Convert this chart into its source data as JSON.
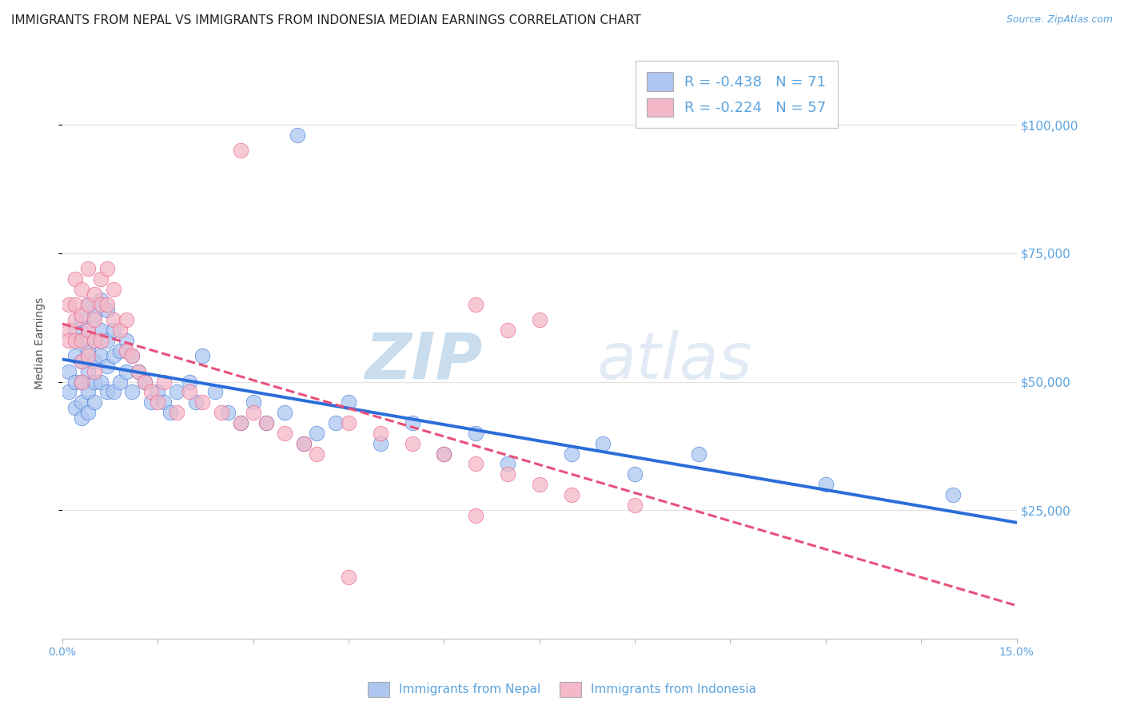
{
  "title": "IMMIGRANTS FROM NEPAL VS IMMIGRANTS FROM INDONESIA MEDIAN EARNINGS CORRELATION CHART",
  "source": "Source: ZipAtlas.com",
  "ylabel": "Median Earnings",
  "yticks": [
    25000,
    50000,
    75000,
    100000
  ],
  "ytick_labels": [
    "$25,000",
    "$50,000",
    "$75,000",
    "$100,000"
  ],
  "xlim": [
    0.0,
    0.15
  ],
  "ylim": [
    0,
    115000
  ],
  "nepal_color": "#aec6f0",
  "indonesia_color": "#f4b8c8",
  "nepal_R": -0.438,
  "nepal_N": 71,
  "indonesia_R": -0.224,
  "indonesia_N": 57,
  "watermark_zip": "ZIP",
  "watermark_atlas": "atlas",
  "legend_label_nepal": "Immigrants from Nepal",
  "legend_label_indonesia": "Immigrants from Indonesia",
  "nepal_x": [
    0.001,
    0.001,
    0.002,
    0.002,
    0.002,
    0.002,
    0.003,
    0.003,
    0.003,
    0.003,
    0.003,
    0.003,
    0.004,
    0.004,
    0.004,
    0.004,
    0.004,
    0.004,
    0.005,
    0.005,
    0.005,
    0.005,
    0.005,
    0.006,
    0.006,
    0.006,
    0.006,
    0.007,
    0.007,
    0.007,
    0.007,
    0.008,
    0.008,
    0.008,
    0.009,
    0.009,
    0.01,
    0.01,
    0.011,
    0.011,
    0.012,
    0.013,
    0.014,
    0.015,
    0.016,
    0.017,
    0.018,
    0.02,
    0.021,
    0.022,
    0.024,
    0.026,
    0.028,
    0.03,
    0.032,
    0.035,
    0.038,
    0.04,
    0.043,
    0.045,
    0.05,
    0.055,
    0.06,
    0.065,
    0.07,
    0.08,
    0.085,
    0.09,
    0.1,
    0.12,
    0.14
  ],
  "nepal_y": [
    52000,
    48000,
    60000,
    55000,
    50000,
    45000,
    62000,
    58000,
    54000,
    50000,
    46000,
    43000,
    65000,
    60000,
    56000,
    52000,
    48000,
    44000,
    63000,
    58000,
    54000,
    50000,
    46000,
    66000,
    60000,
    55000,
    50000,
    64000,
    58000,
    53000,
    48000,
    60000,
    55000,
    48000,
    56000,
    50000,
    58000,
    52000,
    55000,
    48000,
    52000,
    50000,
    46000,
    48000,
    46000,
    44000,
    48000,
    50000,
    46000,
    55000,
    48000,
    44000,
    42000,
    46000,
    42000,
    44000,
    38000,
    40000,
    42000,
    46000,
    38000,
    42000,
    36000,
    40000,
    34000,
    36000,
    38000,
    32000,
    36000,
    30000,
    28000
  ],
  "indonesia_x": [
    0.001,
    0.001,
    0.001,
    0.002,
    0.002,
    0.002,
    0.002,
    0.003,
    0.003,
    0.003,
    0.003,
    0.003,
    0.004,
    0.004,
    0.004,
    0.004,
    0.005,
    0.005,
    0.005,
    0.005,
    0.006,
    0.006,
    0.006,
    0.007,
    0.007,
    0.008,
    0.008,
    0.009,
    0.01,
    0.01,
    0.011,
    0.012,
    0.013,
    0.014,
    0.015,
    0.016,
    0.018,
    0.02,
    0.022,
    0.025,
    0.028,
    0.03,
    0.032,
    0.035,
    0.038,
    0.04,
    0.045,
    0.05,
    0.055,
    0.06,
    0.065,
    0.07,
    0.075,
    0.08,
    0.09,
    0.065,
    0.07
  ],
  "indonesia_y": [
    60000,
    65000,
    58000,
    70000,
    65000,
    62000,
    58000,
    68000,
    63000,
    58000,
    54000,
    50000,
    72000,
    65000,
    60000,
    55000,
    67000,
    62000,
    58000,
    52000,
    70000,
    65000,
    58000,
    72000,
    65000,
    68000,
    62000,
    60000,
    62000,
    56000,
    55000,
    52000,
    50000,
    48000,
    46000,
    50000,
    44000,
    48000,
    46000,
    44000,
    42000,
    44000,
    42000,
    40000,
    38000,
    36000,
    42000,
    40000,
    38000,
    36000,
    34000,
    32000,
    30000,
    28000,
    26000,
    65000,
    60000
  ],
  "nepal_line_color": "#2a6dd9",
  "indonesia_line_color": "#e8507a",
  "title_fontsize": 11,
  "source_fontsize": 9,
  "axis_fontsize": 10,
  "tick_color": "#5ba3e0",
  "grid_color": "#e0e0e0",
  "nepal_outlier_x": [
    0.037
  ],
  "nepal_outlier_y": [
    98000
  ],
  "indonesia_outlier_high_x": [
    0.028
  ],
  "indonesia_outlier_high_y": [
    95000
  ],
  "indonesia_outlier_mid_x": [
    0.075
  ],
  "indonesia_outlier_mid_y": [
    62000
  ],
  "indonesia_outlier_low_x": [
    0.065
  ],
  "indonesia_outlier_low_y": [
    24000
  ],
  "indonesia_outlier_vlow_x": [
    0.045
  ],
  "indonesia_outlier_vlow_y": [
    12000
  ]
}
